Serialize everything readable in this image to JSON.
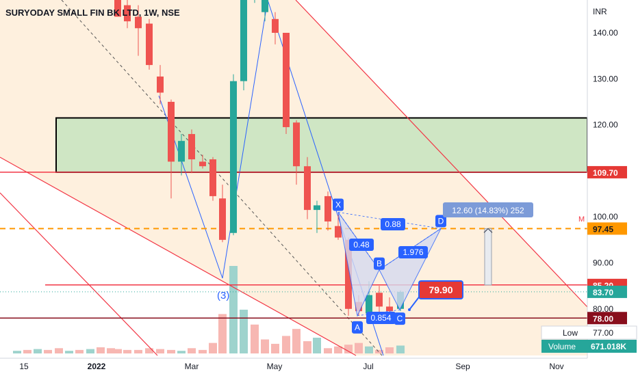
{
  "header": {
    "title": "SURYODAY SMALL FIN BK LTD, 1W, NSE"
  },
  "currency": "INR",
  "colors": {
    "up": "#26a69a",
    "down": "#ef5350",
    "vol_up": "#9ed3cd",
    "vol_down": "#f7b7b2",
    "channel_line": "#f23645",
    "channel_fill": "#fdebd3",
    "zone_fill": "#cfe6c4",
    "pattern_blue": "#2962ff",
    "pattern_fill": "#d6daf0",
    "target_line": "#ff9800",
    "orange_badge": "#ff9800",
    "red_badge": "#e53935",
    "dark_badge": "#880e1c",
    "green_badge": "#26a69a"
  },
  "chart_data": {
    "type": "candlestick",
    "title": "SURYODAY SMALL FIN BK LTD, 1W, NSE",
    "ylabel": "INR",
    "ylim": [
      73.8,
      150.8
    ],
    "y_ticks": [
      "140.00",
      "130.00",
      "120.00",
      "110.00",
      "100.00",
      "90.00",
      "80.00"
    ],
    "x_ticks": [
      "15",
      "2022",
      "Mar",
      "May",
      "Jul",
      "Sep",
      "Nov"
    ],
    "candles": [
      {
        "x": 172,
        "o": 150.5,
        "h": 151.5,
        "l": 144.0,
        "c": 143.5
      },
      {
        "x": 186,
        "o": 146.0,
        "h": 148.5,
        "l": 141.0,
        "c": 142.5
      },
      {
        "x": 202,
        "o": 143.5,
        "h": 146.0,
        "l": 135.0,
        "c": 141.0
      },
      {
        "x": 218,
        "o": 142.0,
        "h": 143.0,
        "l": 132.0,
        "c": 133.0
      },
      {
        "x": 234,
        "o": 130.5,
        "h": 133.0,
        "l": 124.5,
        "c": 127.0
      },
      {
        "x": 250,
        "o": 125.0,
        "h": 125.5,
        "l": 104.0,
        "c": 112.0
      },
      {
        "x": 265,
        "o": 112.0,
        "h": 118.0,
        "l": 109.0,
        "c": 116.5
      },
      {
        "x": 280,
        "o": 118.0,
        "h": 119.0,
        "l": 109.5,
        "c": 112.5
      },
      {
        "x": 296,
        "o": 112.0,
        "h": 113.5,
        "l": 110.5,
        "c": 111.0
      },
      {
        "x": 311,
        "o": 112.5,
        "h": 113.0,
        "l": 103.5,
        "c": 104.5
      },
      {
        "x": 325,
        "o": 104.0,
        "h": 107.0,
        "l": 94.5,
        "c": 95.0
      },
      {
        "x": 341,
        "o": 96.5,
        "h": 131.0,
        "l": 96.0,
        "c": 129.5
      },
      {
        "x": 356,
        "o": 129.5,
        "h": 150.5,
        "l": 127.5,
        "c": 149.5
      },
      {
        "x": 372,
        "o": 148.0,
        "h": 150.8,
        "l": 146.5,
        "c": 149.0
      },
      {
        "x": 387,
        "o": 144.5,
        "h": 150.5,
        "l": 142.5,
        "c": 150.0
      },
      {
        "x": 402,
        "o": 143.0,
        "h": 144.5,
        "l": 137.5,
        "c": 140.0
      },
      {
        "x": 418,
        "o": 140.0,
        "h": 140.0,
        "l": 118.0,
        "c": 119.5
      },
      {
        "x": 433,
        "o": 120.5,
        "h": 121.0,
        "l": 107.0,
        "c": 111.0
      },
      {
        "x": 449,
        "o": 111.0,
        "h": 113.0,
        "l": 99.5,
        "c": 101.5
      },
      {
        "x": 463,
        "o": 101.5,
        "h": 103.5,
        "l": 96.5,
        "c": 102.5
      },
      {
        "x": 479,
        "o": 104.5,
        "h": 105.5,
        "l": 97.0,
        "c": 99.0
      },
      {
        "x": 494,
        "o": 98.0,
        "h": 100.5,
        "l": 95.0,
        "c": 95.5
      },
      {
        "x": 509,
        "o": 95.0,
        "h": 95.5,
        "l": 78.5,
        "c": 80.0
      },
      {
        "x": 524,
        "o": 81.5,
        "h": 83.0,
        "l": 78.5,
        "c": 79.5
      },
      {
        "x": 539,
        "o": 79.0,
        "h": 86.0,
        "l": 78.5,
        "c": 83.0
      },
      {
        "x": 554,
        "o": 83.5,
        "h": 85.0,
        "l": 79.0,
        "c": 80.5
      },
      {
        "x": 569,
        "o": 80.5,
        "h": 82.5,
        "l": 78.5,
        "c": 79.5
      },
      {
        "x": 585,
        "o": 80.0,
        "h": 84.0,
        "l": 79.5,
        "c": 83.7
      }
    ],
    "volume": [
      {
        "x": 25,
        "v": 3,
        "d": "up"
      },
      {
        "x": 40,
        "v": 4,
        "d": "down"
      },
      {
        "x": 55,
        "v": 5,
        "d": "up"
      },
      {
        "x": 70,
        "v": 4,
        "d": "down"
      },
      {
        "x": 86,
        "v": 6,
        "d": "down"
      },
      {
        "x": 101,
        "v": 3,
        "d": "up"
      },
      {
        "x": 116,
        "v": 4,
        "d": "down"
      },
      {
        "x": 132,
        "v": 5,
        "d": "up"
      },
      {
        "x": 147,
        "v": 7,
        "d": "down"
      },
      {
        "x": 162,
        "v": 6,
        "d": "down"
      },
      {
        "x": 172,
        "v": 5,
        "d": "down"
      },
      {
        "x": 186,
        "v": 4,
        "d": "down"
      },
      {
        "x": 202,
        "v": 4,
        "d": "down"
      },
      {
        "x": 218,
        "v": 6,
        "d": "down"
      },
      {
        "x": 234,
        "v": 5,
        "d": "down"
      },
      {
        "x": 250,
        "v": 4,
        "d": "down"
      },
      {
        "x": 265,
        "v": 3,
        "d": "up"
      },
      {
        "x": 280,
        "v": 6,
        "d": "down"
      },
      {
        "x": 296,
        "v": 4,
        "d": "down"
      },
      {
        "x": 311,
        "v": 12,
        "d": "down"
      },
      {
        "x": 325,
        "v": 45,
        "d": "down"
      },
      {
        "x": 341,
        "v": 100,
        "d": "up"
      },
      {
        "x": 356,
        "v": 50,
        "d": "up"
      },
      {
        "x": 372,
        "v": 33,
        "d": "down"
      },
      {
        "x": 387,
        "v": 16,
        "d": "down"
      },
      {
        "x": 402,
        "v": 11,
        "d": "down"
      },
      {
        "x": 418,
        "v": 20,
        "d": "down"
      },
      {
        "x": 433,
        "v": 28,
        "d": "down"
      },
      {
        "x": 449,
        "v": 14,
        "d": "down"
      },
      {
        "x": 463,
        "v": 18,
        "d": "up"
      },
      {
        "x": 479,
        "v": 6,
        "d": "down"
      },
      {
        "x": 494,
        "v": 8,
        "d": "down"
      },
      {
        "x": 509,
        "v": 10,
        "d": "down"
      },
      {
        "x": 524,
        "v": 12,
        "d": "down"
      },
      {
        "x": 539,
        "v": 8,
        "d": "up"
      },
      {
        "x": 554,
        "v": 4,
        "d": "down"
      },
      {
        "x": 569,
        "v": 7,
        "d": "down"
      },
      {
        "x": 585,
        "v": 9,
        "d": "up"
      }
    ],
    "levels": {
      "zone_top": 121.5,
      "zone_bottom": 109.7,
      "target": 97.45,
      "resistance": 85.2,
      "last": 83.7,
      "support": 78.0
    },
    "harmonic": {
      "points": [
        {
          "label": "X",
          "x": 494,
          "y": 101.0
        },
        {
          "label": "A",
          "x": 522,
          "y": 78.5
        },
        {
          "label": "B",
          "x": 554,
          "y": 88.5
        },
        {
          "label": "C",
          "x": 584,
          "y": 79.8
        },
        {
          "label": "D",
          "x": 644,
          "y": 97.45
        }
      ],
      "ratios": [
        "0.48",
        "0.88",
        "1.976",
        "0.854"
      ]
    },
    "measurement": "12.60 (14.83%) 252",
    "callout": "79.90",
    "wave_label": "(3)",
    "price_labels": {
      "zone": "109.70",
      "target": "97.45",
      "resistance": "85.20",
      "last": "83.70",
      "support": "78.00",
      "low_value": "77.00",
      "volume_value": "671.018K"
    },
    "info_labels": {
      "low": "Low",
      "volume": "Volume"
    },
    "edge_mark": "M"
  }
}
